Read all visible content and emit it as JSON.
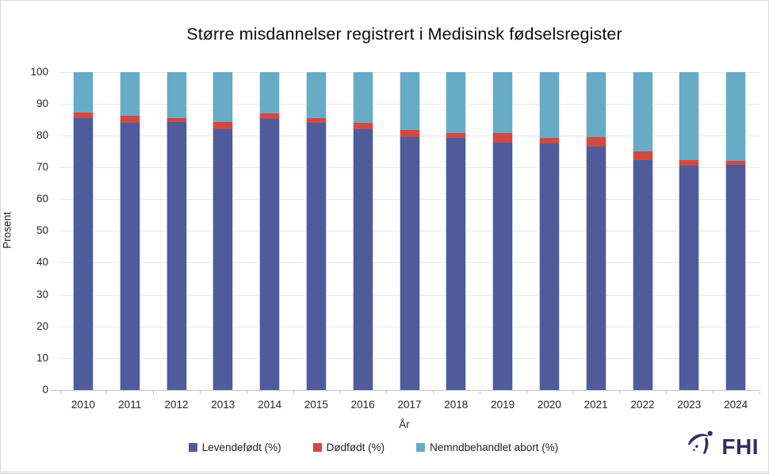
{
  "page": {
    "title": "Større misdannelser registrert i Medisinsk fødselsregister"
  },
  "logo": {
    "text": "FHI",
    "color": "#2d3061"
  },
  "chart_data": {
    "type": "bar",
    "stacked": true,
    "title": "Større misdannelser registrert i Medisinsk fødselsregister",
    "xlabel": "År",
    "ylabel": "Prosent",
    "ylim": [
      0,
      100
    ],
    "ytick_step": 10,
    "grid": true,
    "legend_position": "bottom",
    "categories": [
      "2010",
      "2011",
      "2012",
      "2013",
      "2014",
      "2015",
      "2016",
      "2017",
      "2018",
      "2019",
      "2020",
      "2021",
      "2022",
      "2023",
      "2024"
    ],
    "series": [
      {
        "name": "Levendefødt (%)",
        "color": "#4F5B9B",
        "values": [
          85.5,
          83.9,
          84.1,
          81.9,
          85.1,
          83.9,
          81.9,
          79.5,
          79.3,
          77.8,
          77.5,
          76.4,
          72.2,
          70.6,
          70.7
        ]
      },
      {
        "name": "Dødfødt (%)",
        "color": "#D04A42",
        "values": [
          1.7,
          2.2,
          1.4,
          2.2,
          1.9,
          1.5,
          2.0,
          2.3,
          1.5,
          2.8,
          1.6,
          3.1,
          2.7,
          1.6,
          1.4
        ]
      },
      {
        "name": "Nemndbehandlet abort (%)",
        "color": "#68ABC7",
        "values": [
          12.8,
          13.9,
          14.5,
          15.9,
          13.0,
          14.6,
          16.1,
          18.2,
          19.2,
          19.4,
          20.9,
          20.5,
          25.1,
          27.8,
          27.9
        ]
      }
    ]
  }
}
